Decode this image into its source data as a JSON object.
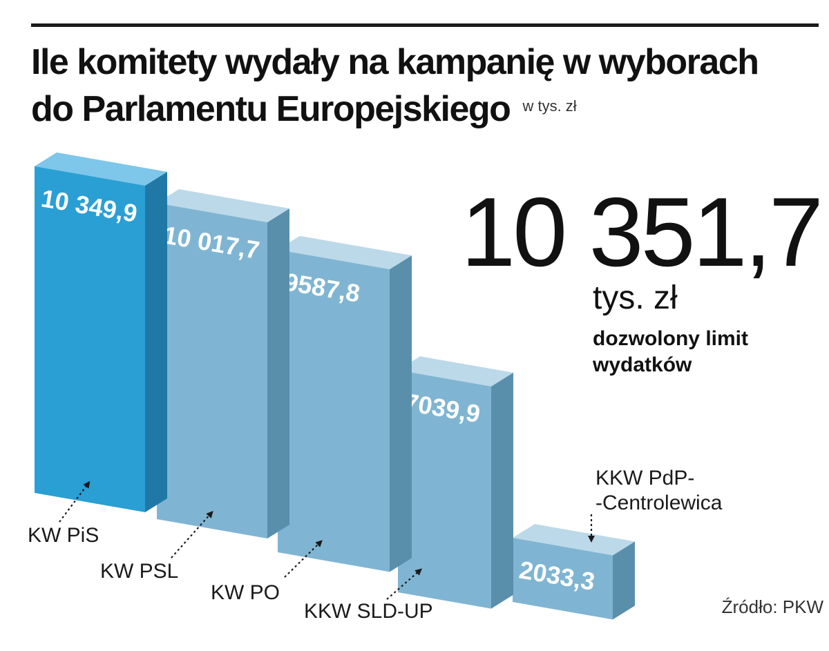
{
  "title_line1": "Ile komitety wydały na kampanię w wyborach",
  "title_line2": "do Parlamentu Europejskiego",
  "unit": "w tys. zł",
  "limit": {
    "value": "10 351,7",
    "unit": "tys. zł",
    "description": "dozwolony limit wydatków"
  },
  "source": "Źródło: PKW",
  "colors": {
    "highlight_front": "#2a9fd4",
    "highlight_top": "#7ec6ea",
    "highlight_side": "#1f78a6",
    "bar_front": "#7fb5d2",
    "bar_top": "#bcd9ea",
    "bar_side": "#5a8fab"
  },
  "chart_data": {
    "type": "bar",
    "title": "Ile komitety wydały na kampanię w wyborach do Parlamentu Europejskiego",
    "ylabel": "w tys. zł",
    "categories": [
      "KW PiS",
      "KW PSL",
      "KW PO",
      "KKW SLD-UP",
      "KKW PdP--Centrolewica"
    ],
    "category_lines": [
      [
        "KW PiS"
      ],
      [
        "KW PSL"
      ],
      [
        "KW PO"
      ],
      [
        "KKW SLD-UP"
      ],
      [
        "KKW PdP-",
        "-Centrolewica"
      ]
    ],
    "values": [
      10349.9,
      10017.7,
      9587.8,
      7039.9,
      2033.3
    ],
    "value_labels": [
      "10 349,9",
      "10 017,7",
      "9587,8",
      "7039,9",
      "2033,3"
    ],
    "highlighted": "KW PiS",
    "ylim": [
      0,
      10500
    ]
  }
}
